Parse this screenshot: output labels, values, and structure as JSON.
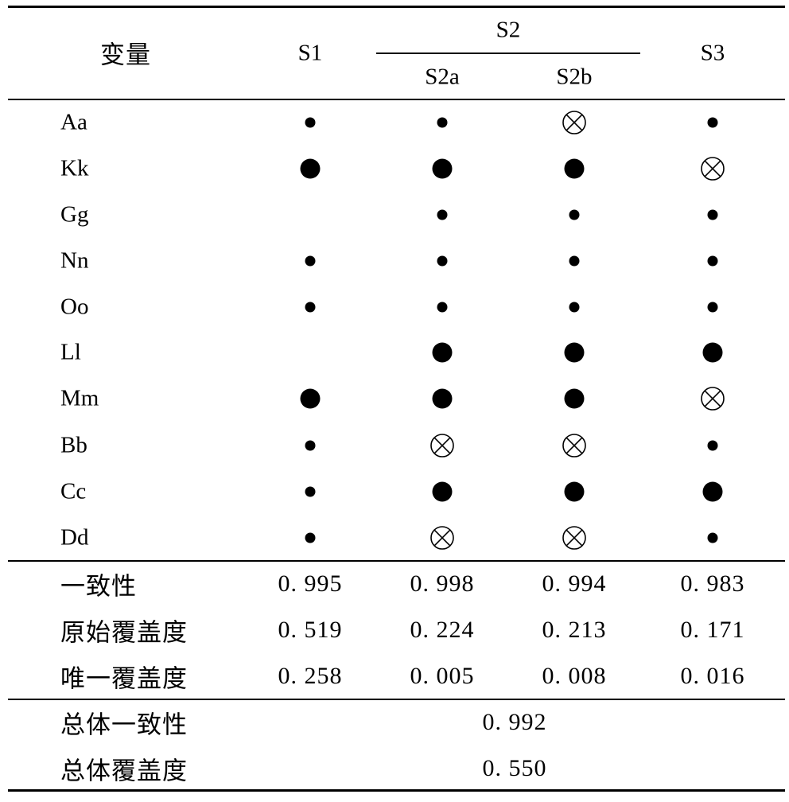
{
  "table": {
    "header": {
      "variable": "变量",
      "s1": "S1",
      "s2": "S2",
      "s2a": "S2a",
      "s2b": "S2b",
      "s3": "S3"
    },
    "legend_symbols": {
      "small-dot": "small filled circle",
      "large-dot": "large filled circle",
      "circled-x": "circled cross"
    },
    "rows": [
      {
        "label": "Aa",
        "marks": [
          "small-dot",
          "small-dot",
          "circled-x",
          "small-dot"
        ]
      },
      {
        "label": "Kk",
        "marks": [
          "large-dot",
          "large-dot",
          "large-dot",
          "circled-x"
        ]
      },
      {
        "label": "Gg",
        "marks": [
          "",
          "small-dot",
          "small-dot",
          "small-dot"
        ]
      },
      {
        "label": "Nn",
        "marks": [
          "small-dot",
          "small-dot",
          "small-dot",
          "small-dot"
        ]
      },
      {
        "label": "Oo",
        "marks": [
          "small-dot",
          "small-dot",
          "small-dot",
          "small-dot"
        ]
      },
      {
        "label": "Ll",
        "marks": [
          "",
          "large-dot",
          "large-dot",
          "large-dot"
        ]
      },
      {
        "label": "Mm",
        "marks": [
          "large-dot",
          "large-dot",
          "large-dot",
          "circled-x"
        ]
      },
      {
        "label": "Bb",
        "marks": [
          "small-dot",
          "circled-x",
          "circled-x",
          "small-dot"
        ]
      },
      {
        "label": "Cc",
        "marks": [
          "small-dot",
          "large-dot",
          "large-dot",
          "large-dot"
        ]
      },
      {
        "label": "Dd",
        "marks": [
          "small-dot",
          "circled-x",
          "circled-x",
          "small-dot"
        ]
      }
    ],
    "metrics": [
      {
        "label": "一致性",
        "values": [
          "0. 995",
          "0. 998",
          "0. 994",
          "0. 983"
        ]
      },
      {
        "label": "原始覆盖度",
        "values": [
          "0. 519",
          "0. 224",
          "0. 213",
          "0. 171"
        ]
      },
      {
        "label": "唯一覆盖度",
        "values": [
          "0. 258",
          "0. 005",
          "0. 008",
          "0. 016"
        ]
      }
    ],
    "overall": [
      {
        "label": "总体一致性",
        "value": "0. 992"
      },
      {
        "label": "总体覆盖度",
        "value": "0. 550"
      }
    ]
  }
}
